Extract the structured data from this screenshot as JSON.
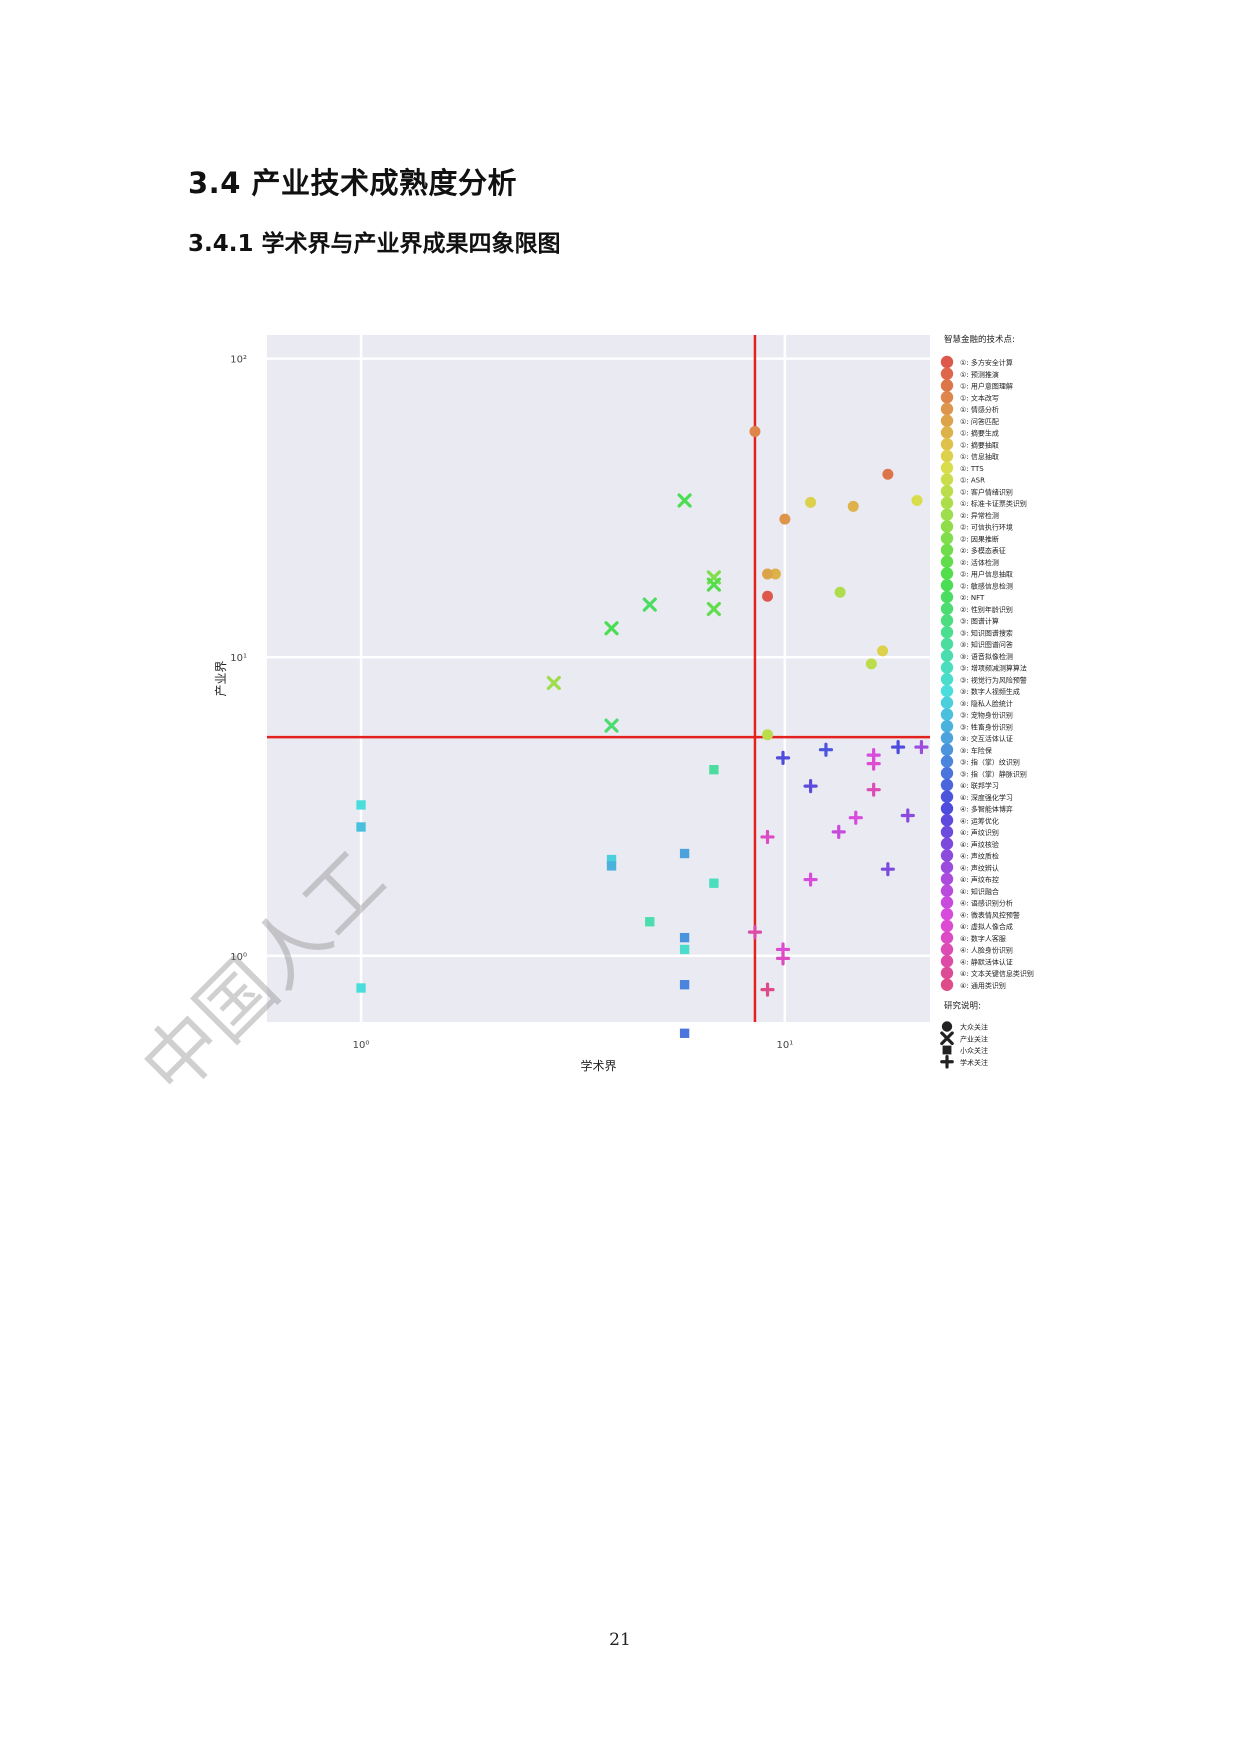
{
  "document": {
    "section_title": "3.4 产业技术成熟度分析",
    "subsection_title": "3.4.1 学术界与产业界成果四象限图",
    "watermark": "中国人工",
    "page_number": "21"
  },
  "chart_data": {
    "type": "scatter",
    "xlabel": "学术界",
    "ylabel": "产业界",
    "x_scale": "log",
    "y_scale": "log",
    "xlim": [
      0.6,
      22
    ],
    "ylim": [
      0.6,
      120
    ],
    "x_ticks": [
      {
        "value": 1,
        "label": "10⁰"
      },
      {
        "value": 10,
        "label": "10¹"
      }
    ],
    "y_ticks": [
      {
        "value": 1,
        "label": "10⁰"
      },
      {
        "value": 10,
        "label": "10¹"
      },
      {
        "value": 100,
        "label": "10²"
      }
    ],
    "divider_x": 8.5,
    "divider_y": 5.4,
    "divider_color": "#e3221f",
    "background_color": "#eaeaf2",
    "grid": true,
    "legend_placement": "right",
    "legend_hue_title": "智慧金融的技术点:",
    "legend_style_title": "研究说明:",
    "styles": [
      {
        "label": "大众关注",
        "marker": "circle"
      },
      {
        "label": "产业关注",
        "marker": "x"
      },
      {
        "label": "小众关注",
        "marker": "square"
      },
      {
        "label": "学术关注",
        "marker": "plus"
      }
    ],
    "hue_labels": [
      "①: 多方安全计算",
      "①: 预测推演",
      "①: 用户意图理解",
      "①: 文本改写",
      "①: 情感分析",
      "①: 问答匹配",
      "①: 摘要生成",
      "①: 摘要抽取",
      "①: 信息抽取",
      "①: TTS",
      "①: ASR",
      "①: 客户情绪识别",
      "①: 标准卡证票类识别",
      "②: 异常检测",
      "②: 可信执行环境",
      "②: 因果推断",
      "②: 多模态表征",
      "②: 活体检测",
      "②: 用户信息抽取",
      "②: 敏感信息检测",
      "②: NFT",
      "②: 性别年龄识别",
      "③: 图谱计算",
      "③: 知识图谱搜索",
      "③: 知识图谱问答",
      "③: 语音拟像检测",
      "③: 增项频减测算算法",
      "③: 视觉行为风险预警",
      "③: 数字人视频生成",
      "③: 隐私人脸统计",
      "③: 宠物身份识别",
      "③: 牲畜身份识别",
      "③: 交互活体认证",
      "③: 车险保",
      "③: 指（掌）纹识别",
      "③: 指（掌）静脉识别",
      "④: 联邦学习",
      "④: 深度强化学习",
      "④: 多智能体博弈",
      "④: 运筹优化",
      "④: 声纹识别",
      "④: 声纹核验",
      "④: 声纹质检",
      "④: 声纹辨认",
      "④: 声纹布控",
      "④: 知识融合",
      "④: 语感识别分析",
      "④: 微表情风控预警",
      "④: 虚拟人像合成",
      "④: 数字人客服",
      "④: 人脸身份识别",
      "④: 静默活体认证",
      "④: 文本关键信息类识别",
      "④: 通用类识别"
    ],
    "points": [
      {
        "x": 8.5,
        "y": 57,
        "hue": 3,
        "style": 0
      },
      {
        "x": 10,
        "y": 29,
        "hue": 4,
        "style": 0
      },
      {
        "x": 11.5,
        "y": 33,
        "hue": 8,
        "style": 0
      },
      {
        "x": 14.5,
        "y": 32,
        "hue": 6,
        "style": 0
      },
      {
        "x": 17.5,
        "y": 41,
        "hue": 2,
        "style": 0
      },
      {
        "x": 20.5,
        "y": 33.5,
        "hue": 9,
        "style": 0
      },
      {
        "x": 9.5,
        "y": 19,
        "hue": 6,
        "style": 0
      },
      {
        "x": 9.1,
        "y": 19,
        "hue": 5,
        "style": 0
      },
      {
        "x": 9.1,
        "y": 16,
        "hue": 0,
        "style": 0
      },
      {
        "x": 13.5,
        "y": 16.5,
        "hue": 12,
        "style": 0
      },
      {
        "x": 17,
        "y": 10.5,
        "hue": 8,
        "style": 0
      },
      {
        "x": 16,
        "y": 9.5,
        "hue": 11,
        "style": 0
      },
      {
        "x": 9.1,
        "y": 5.5,
        "hue": 11,
        "style": 0
      },
      {
        "x": 5.8,
        "y": 33.5,
        "hue": 19,
        "style": 1
      },
      {
        "x": 6.8,
        "y": 18.5,
        "hue": 15,
        "style": 1
      },
      {
        "x": 6.8,
        "y": 17.5,
        "hue": 18,
        "style": 1
      },
      {
        "x": 6.8,
        "y": 14.5,
        "hue": 17,
        "style": 1
      },
      {
        "x": 4.8,
        "y": 15,
        "hue": 20,
        "style": 1
      },
      {
        "x": 3.9,
        "y": 12.5,
        "hue": 19,
        "style": 1
      },
      {
        "x": 2.85,
        "y": 8.2,
        "hue": 13,
        "style": 1
      },
      {
        "x": 3.9,
        "y": 5.9,
        "hue": 21,
        "style": 1
      },
      {
        "x": 6.8,
        "y": 4.2,
        "hue": 24,
        "style": 2
      },
      {
        "x": 1,
        "y": 3.2,
        "hue": 28,
        "style": 2
      },
      {
        "x": 1,
        "y": 2.7,
        "hue": 30,
        "style": 2
      },
      {
        "x": 3.9,
        "y": 2.1,
        "hue": 29,
        "style": 2
      },
      {
        "x": 3.9,
        "y": 2.0,
        "hue": 31,
        "style": 2
      },
      {
        "x": 5.8,
        "y": 2.2,
        "hue": 32,
        "style": 2
      },
      {
        "x": 6.8,
        "y": 1.75,
        "hue": 26,
        "style": 2
      },
      {
        "x": 4.8,
        "y": 1.3,
        "hue": 25,
        "style": 2
      },
      {
        "x": 5.8,
        "y": 1.15,
        "hue": 33,
        "style": 2
      },
      {
        "x": 5.8,
        "y": 1.05,
        "hue": 27,
        "style": 2
      },
      {
        "x": 5.8,
        "y": 0.8,
        "hue": 34,
        "style": 2
      },
      {
        "x": 1,
        "y": 0.78,
        "hue": 28,
        "style": 2
      },
      {
        "x": 5.8,
        "y": 0.55,
        "hue": 35,
        "style": 2
      },
      {
        "x": 9.9,
        "y": 4.6,
        "hue": 38,
        "style": 3
      },
      {
        "x": 12.5,
        "y": 4.9,
        "hue": 37,
        "style": 3
      },
      {
        "x": 11.5,
        "y": 3.7,
        "hue": 39,
        "style": 3
      },
      {
        "x": 18.5,
        "y": 5.0,
        "hue": 38,
        "style": 3
      },
      {
        "x": 21,
        "y": 5.0,
        "hue": 43,
        "style": 3
      },
      {
        "x": 16.2,
        "y": 4.7,
        "hue": 47,
        "style": 3
      },
      {
        "x": 16.2,
        "y": 4.4,
        "hue": 48,
        "style": 3
      },
      {
        "x": 16.2,
        "y": 3.6,
        "hue": 50,
        "style": 3
      },
      {
        "x": 14.7,
        "y": 2.9,
        "hue": 47,
        "style": 3
      },
      {
        "x": 13.4,
        "y": 2.6,
        "hue": 46,
        "style": 3
      },
      {
        "x": 19.5,
        "y": 2.95,
        "hue": 42,
        "style": 3
      },
      {
        "x": 9.1,
        "y": 2.5,
        "hue": 49,
        "style": 3
      },
      {
        "x": 11.5,
        "y": 1.8,
        "hue": 47,
        "style": 3
      },
      {
        "x": 17.5,
        "y": 1.95,
        "hue": 41,
        "style": 3
      },
      {
        "x": 8.5,
        "y": 1.2,
        "hue": 51,
        "style": 3
      },
      {
        "x": 9.9,
        "y": 1.05,
        "hue": 48,
        "style": 3
      },
      {
        "x": 9.9,
        "y": 0.98,
        "hue": 49,
        "style": 3
      },
      {
        "x": 9.1,
        "y": 0.77,
        "hue": 53,
        "style": 3
      }
    ]
  }
}
